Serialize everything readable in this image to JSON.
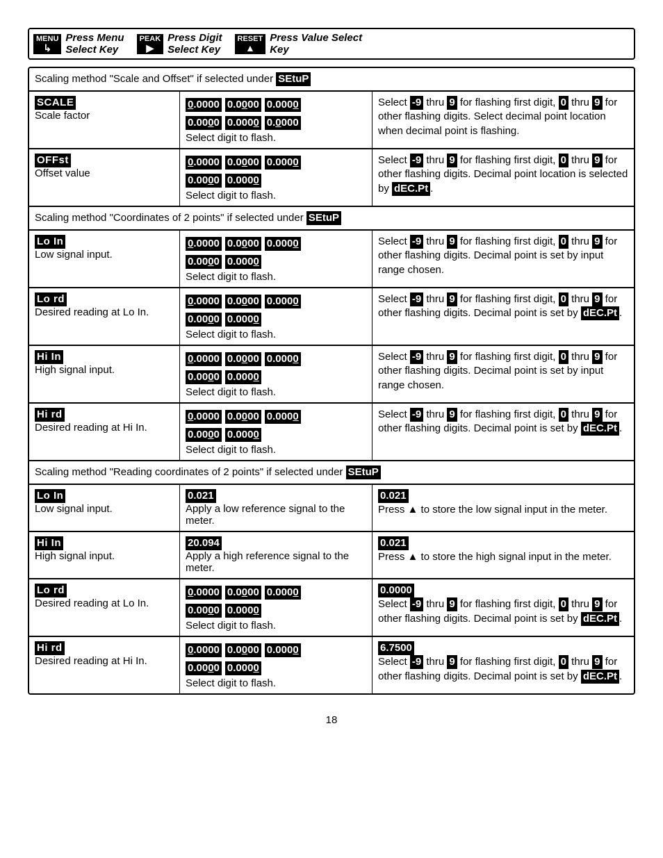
{
  "header": {
    "menu": {
      "icon_top": "MENU",
      "l1": "Press Menu",
      "l2": "Select Key"
    },
    "peak": {
      "icon_top": "PEAK",
      "l1": "Press Digit",
      "l2": "Select Key"
    },
    "reset": {
      "icon_top": "RESET",
      "l1": "Press Value Select",
      "l2": "Key"
    }
  },
  "sections": [
    {
      "title_pre": "Scaling method \"Scale and Offset\" if selected under ",
      "title_inv": "SEtuP",
      "rows": [
        {
          "label_inv": "SCALE",
          "label_text": "Scale factor",
          "digits": [
            "0.0000",
            "0.0000",
            "0.0000",
            "0.0000",
            "0.0000",
            "0.0000"
          ],
          "digits_uline_idx": [
            0,
            2,
            4,
            3,
            4,
            1
          ],
          "digits_caption": "Select digit to flash.",
          "rhs_parts": [
            {
              "t": "Select "
            },
            {
              "inv": "-9"
            },
            {
              "t": " thru "
            },
            {
              "inv": "9"
            },
            {
              "t": " for flashing first digit, "
            },
            {
              "inv": "0"
            },
            {
              "t": " thru "
            },
            {
              "inv": "9"
            },
            {
              "t": " for other flashing digits. Select decimal point location when decimal point is flashing."
            }
          ]
        },
        {
          "label_inv": "OFFst",
          "label_text": "Offset value",
          "digits": [
            "0.0000",
            "0.0000",
            "0.0000",
            "0.0000",
            "0.0000"
          ],
          "digits_uline_idx": [
            0,
            2,
            4,
            3,
            4
          ],
          "digits_caption": "Select digit to flash.",
          "rhs_parts": [
            {
              "t": "Select "
            },
            {
              "inv": "-9"
            },
            {
              "t": " thru "
            },
            {
              "inv": "9"
            },
            {
              "t": " for flashing first digit, "
            },
            {
              "inv": "0"
            },
            {
              "t": " thru "
            },
            {
              "inv": "9"
            },
            {
              "t": " for other flashing digits. Decimal point location is selected by "
            },
            {
              "inv": "dEC.Pt"
            },
            {
              "t": "."
            }
          ]
        }
      ]
    },
    {
      "title_pre": "Scaling method \"Coordinates of 2 points\" if selected under ",
      "title_inv": "SEtuP",
      "rows": [
        {
          "label_inv": "Lo In",
          "label_text": "Low signal input.",
          "digits": [
            "0.0000",
            "0.0000",
            "0.0000",
            "0.0000",
            "0.0000"
          ],
          "digits_uline_idx": [
            0,
            2,
            4,
            3,
            4
          ],
          "digits_caption": "Select digit to flash.",
          "rhs_parts": [
            {
              "t": "Select "
            },
            {
              "inv": "-9"
            },
            {
              "t": " thru "
            },
            {
              "inv": "9"
            },
            {
              "t": " for flashing first digit, "
            },
            {
              "inv": "0"
            },
            {
              "t": " thru "
            },
            {
              "inv": "9"
            },
            {
              "t": " for other flashing digits. Decimal point is set by input range chosen."
            }
          ]
        },
        {
          "label_inv": "Lo rd",
          "label_text": "Desired reading at Lo In.",
          "digits": [
            "0.0000",
            "0.0000",
            "0.0000",
            "0.0000",
            "0.0000"
          ],
          "digits_uline_idx": [
            0,
            2,
            4,
            3,
            4
          ],
          "digits_caption": "Select digit to flash.",
          "rhs_parts": [
            {
              "t": "Select "
            },
            {
              "inv": "-9"
            },
            {
              "t": " thru "
            },
            {
              "inv": "9"
            },
            {
              "t": " for flashing first digit, "
            },
            {
              "inv": "0"
            },
            {
              "t": " thru "
            },
            {
              "inv": "9"
            },
            {
              "t": " for other flashing digits. Decimal point is set by "
            },
            {
              "inv": "dEC.Pt"
            },
            {
              "t": "."
            }
          ]
        },
        {
          "label_inv": "Hi In",
          "label_text": "High signal input.",
          "digits": [
            "0.0000",
            "0.0000",
            "0.0000",
            "0.0000",
            "0.0000"
          ],
          "digits_uline_idx": [
            0,
            2,
            4,
            3,
            4
          ],
          "digits_caption": "Select digit to flash.",
          "rhs_parts": [
            {
              "t": "Select "
            },
            {
              "inv": "-9"
            },
            {
              "t": " thru "
            },
            {
              "inv": "9"
            },
            {
              "t": " for flashing first digit, "
            },
            {
              "inv": "0"
            },
            {
              "t": " thru "
            },
            {
              "inv": "9"
            },
            {
              "t": " for other flashing digits. Decimal point is set by input range chosen."
            }
          ]
        },
        {
          "label_inv": "Hi rd",
          "label_text": "Desired reading at Hi In.",
          "digits": [
            "0.0000",
            "0.0000",
            "0.0000",
            "0.0000",
            "0.0000"
          ],
          "digits_uline_idx": [
            0,
            2,
            4,
            3,
            4
          ],
          "digits_caption": "Select digit to flash.",
          "rhs_parts": [
            {
              "t": "Select "
            },
            {
              "inv": "-9"
            },
            {
              "t": " thru "
            },
            {
              "inv": "9"
            },
            {
              "t": " for flashing first digit, "
            },
            {
              "inv": "0"
            },
            {
              "t": " thru "
            },
            {
              "inv": "9"
            },
            {
              "t": " for other flashing digits. Decimal point is set by "
            },
            {
              "inv": "dEC.Pt"
            },
            {
              "t": "."
            }
          ]
        }
      ]
    },
    {
      "title_pre": "Scaling method \"Reading coordinates of 2 points\" if selected under ",
      "title_inv": "SEtuP",
      "rows": [
        {
          "label_inv": "Lo In",
          "label_text": "Low signal input.",
          "col2_single_inv": " 0.021",
          "col2_caption": "Apply a low reference signal to the meter.",
          "rhs_pre_inv": " 0.021",
          "rhs_parts": [
            {
              "t": "Press ▲ to store the low signal input in the meter."
            }
          ]
        },
        {
          "label_inv": "Hi In",
          "label_text": "High signal input.",
          "col2_single_inv": " 20.094",
          "col2_caption": "Apply a high reference signal to the meter.",
          "rhs_pre_inv": " 0.021",
          "rhs_parts": [
            {
              "t": "Press ▲ to store the high signal input in the meter."
            }
          ]
        },
        {
          "label_inv": "Lo rd",
          "label_text": "Desired reading at Lo In.",
          "digits": [
            "0.0000",
            "0.0000",
            "0.0000",
            "0.0000",
            "0.0000"
          ],
          "digits_uline_idx": [
            0,
            2,
            4,
            3,
            4
          ],
          "digits_caption": "Select digit to flash.",
          "rhs_pre_inv": "0.0000",
          "rhs_parts": [
            {
              "t": "Select "
            },
            {
              "inv": "-9"
            },
            {
              "t": " thru "
            },
            {
              "inv": "9"
            },
            {
              "t": " for flashing first digit, "
            },
            {
              "inv": "0"
            },
            {
              "t": " thru "
            },
            {
              "inv": "9"
            },
            {
              "t": " for other flashing digits. Decimal point is set by "
            },
            {
              "inv": "dEC.Pt"
            },
            {
              "t": "."
            }
          ]
        },
        {
          "label_inv": "Hi rd",
          "label_text": "Desired reading at Hi In.",
          "digits": [
            "0.0000",
            "0.0000",
            "0.0000",
            "0.0000",
            "0.0000"
          ],
          "digits_uline_idx": [
            0,
            2,
            4,
            3,
            4
          ],
          "digits_caption": "Select digit to flash.",
          "rhs_pre_inv": "6.7500",
          "rhs_parts": [
            {
              "t": "Select "
            },
            {
              "inv": "-9"
            },
            {
              "t": " thru "
            },
            {
              "inv": "9"
            },
            {
              "t": " for flashing first digit, "
            },
            {
              "inv": "0"
            },
            {
              "t": " thru "
            },
            {
              "inv": "9"
            },
            {
              "t": " for other flashing digits. Decimal point is set by "
            },
            {
              "inv": "dEC.Pt"
            },
            {
              "t": "."
            }
          ]
        }
      ]
    }
  ],
  "page_number": "18"
}
